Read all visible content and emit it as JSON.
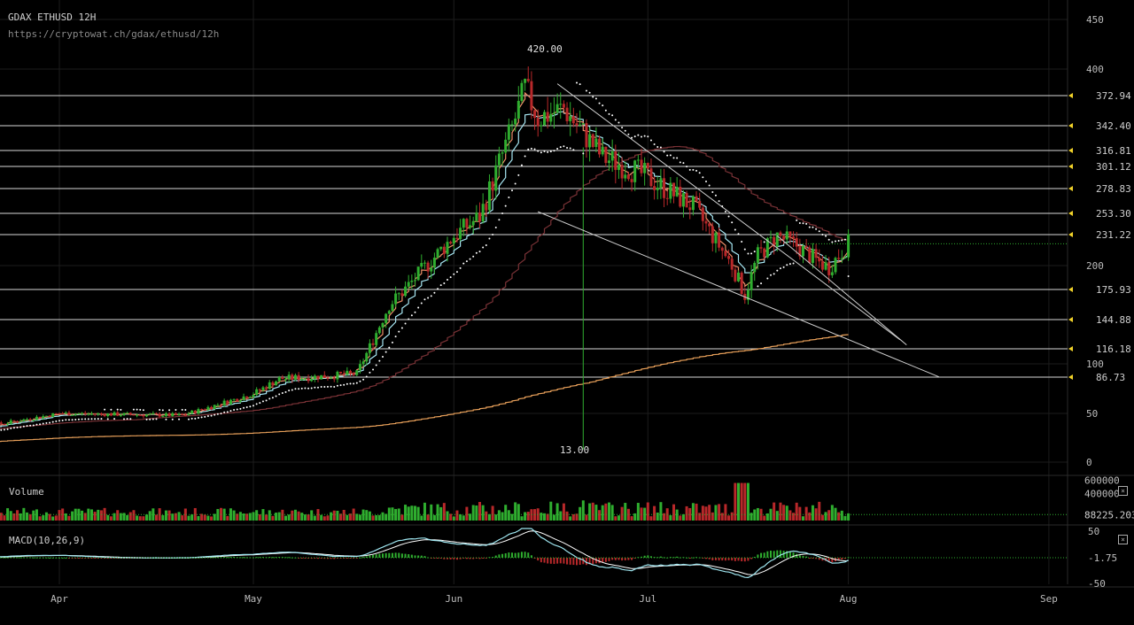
{
  "header": {
    "title": "GDAX ETHUSD 12H",
    "url": "https://cryptowat.ch/gdax/ethusd/12h"
  },
  "colors": {
    "background": "#000000",
    "up": "#2fae2f",
    "down": "#b8282a",
    "ema_short": "#ee8f6a",
    "ema_mid": "#a6e6f2",
    "sma_long": "#7a3236",
    "sma_200": "#e8a05a",
    "parabolic_sar": "#ffffff",
    "level_marker": "#f2d32a",
    "grid": "#1c1c1c",
    "macd_line": "#9fe6f0",
    "macd_signal": "#ffffff"
  },
  "chart_data": {
    "type": "candlestick",
    "exchange": "GDAX",
    "pair": "ETHUSD",
    "interval": "12H",
    "x_ticks": [
      "Apr",
      "May",
      "Jun",
      "Jul",
      "Aug",
      "Sep"
    ],
    "y_ticks": [
      0,
      50,
      100,
      200,
      400,
      450
    ],
    "price_levels": [
      372.94,
      342.4,
      316.81,
      301.12,
      278.83,
      253.3,
      231.22,
      175.93,
      144.88,
      116.18,
      86.73
    ],
    "annotations": {
      "high": {
        "label": "420.00",
        "value": 420.0
      },
      "low": {
        "label": "13.00",
        "value": 13.0
      }
    },
    "price_path": [
      {
        "date": "2017-03-15",
        "price": 30
      },
      {
        "date": "2017-04-01",
        "price": 50
      },
      {
        "date": "2017-04-20",
        "price": 48
      },
      {
        "date": "2017-05-01",
        "price": 70
      },
      {
        "date": "2017-05-05",
        "price": 85
      },
      {
        "date": "2017-05-13",
        "price": 88
      },
      {
        "date": "2017-05-17",
        "price": 90
      },
      {
        "date": "2017-05-22",
        "price": 160
      },
      {
        "date": "2017-05-25",
        "price": 180
      },
      {
        "date": "2017-06-01",
        "price": 230
      },
      {
        "date": "2017-06-05",
        "price": 250
      },
      {
        "date": "2017-06-10",
        "price": 340
      },
      {
        "date": "2017-06-12",
        "price": 380
      },
      {
        "date": "2017-06-14",
        "price": 350
      },
      {
        "date": "2017-06-18",
        "price": 360
      },
      {
        "date": "2017-06-24",
        "price": 310
      },
      {
        "date": "2017-06-28",
        "price": 300
      },
      {
        "date": "2017-07-01",
        "price": 290
      },
      {
        "date": "2017-07-08",
        "price": 260
      },
      {
        "date": "2017-07-14",
        "price": 200
      },
      {
        "date": "2017-07-16",
        "price": 170
      },
      {
        "date": "2017-07-18",
        "price": 210
      },
      {
        "date": "2017-07-21",
        "price": 230
      },
      {
        "date": "2017-07-24",
        "price": 220
      },
      {
        "date": "2017-07-27",
        "price": 205
      },
      {
        "date": "2017-07-29",
        "price": 198
      },
      {
        "date": "2017-08-01",
        "price": 222
      }
    ],
    "flash_crash": {
      "date": "2017-06-21",
      "high": 320,
      "low": 13
    },
    "trend_lines": [
      {
        "from": {
          "date": "2017-06-17",
          "price": 385
        },
        "to": {
          "date": "2017-08-09",
          "price": 125
        }
      },
      {
        "from": {
          "date": "2017-06-14",
          "price": 255
        },
        "to": {
          "date": "2017-08-15",
          "price": 87
        }
      },
      {
        "from": {
          "date": "2017-07-21",
          "price": 230
        },
        "to": {
          "date": "2017-08-10",
          "price": 120
        }
      }
    ],
    "volume": {
      "label": "Volume",
      "y_ticks": [
        400000,
        600000
      ],
      "last_value": "88225.203"
    },
    "macd": {
      "label": "MACD(10,26,9)",
      "y_ticks": [
        50,
        -1.75,
        -50
      ],
      "last_value": "-1.75"
    },
    "grid": true,
    "axis_position": "right"
  }
}
